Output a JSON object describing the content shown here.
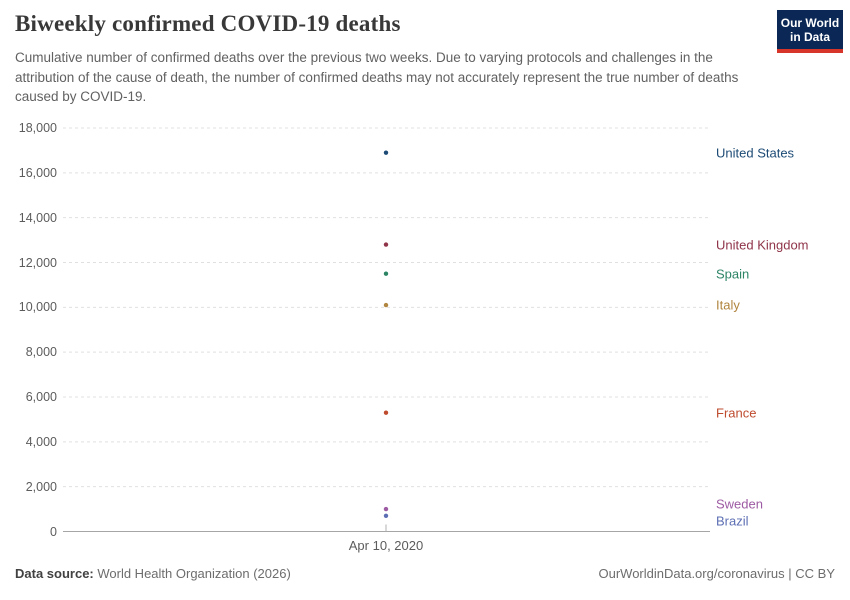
{
  "header": {
    "title": "Biweekly confirmed COVID-19 deaths",
    "subtitle": "Cumulative number of confirmed deaths over the previous two weeks. Due to varying protocols and challenges in the attribution of the cause of death, the number of confirmed deaths may not accurately represent the true number of deaths caused by COVID-19.",
    "logo": {
      "line1": "Our World",
      "line2": "in Data",
      "bg_color": "#0a2755",
      "accent_color": "#d8352a"
    }
  },
  "chart_data": {
    "type": "scatter",
    "title": "Biweekly confirmed COVID-19 deaths",
    "x_tick_label": "Apr 10, 2020",
    "x_values": [
      "Apr 10, 2020"
    ],
    "ylim": [
      0,
      18000
    ],
    "y_ticks": [
      0,
      2000,
      4000,
      6000,
      8000,
      10000,
      12000,
      14000,
      16000,
      18000
    ],
    "grid": "horizontal-dashed",
    "legend_position": "right-entity-labels",
    "series": [
      {
        "name": "United States",
        "values": [
          16900
        ],
        "color": "#1d4b75"
      },
      {
        "name": "United Kingdom",
        "values": [
          12800
        ],
        "color": "#8f3449"
      },
      {
        "name": "Spain",
        "values": [
          11500
        ],
        "color": "#2c8465"
      },
      {
        "name": "Italy",
        "values": [
          10100
        ],
        "color": "#b0853f"
      },
      {
        "name": "France",
        "values": [
          5300
        ],
        "color": "#be4b2e"
      },
      {
        "name": "Sweden",
        "values": [
          1000
        ],
        "color": "#9d5ba3"
      },
      {
        "name": "Brazil",
        "values": [
          700
        ],
        "color": "#5d6fb4"
      }
    ]
  },
  "footer": {
    "source_label": "Data source:",
    "source_text": " World Health Organization (2026)",
    "credit": "OurWorldinData.org/coronavirus | CC BY"
  }
}
